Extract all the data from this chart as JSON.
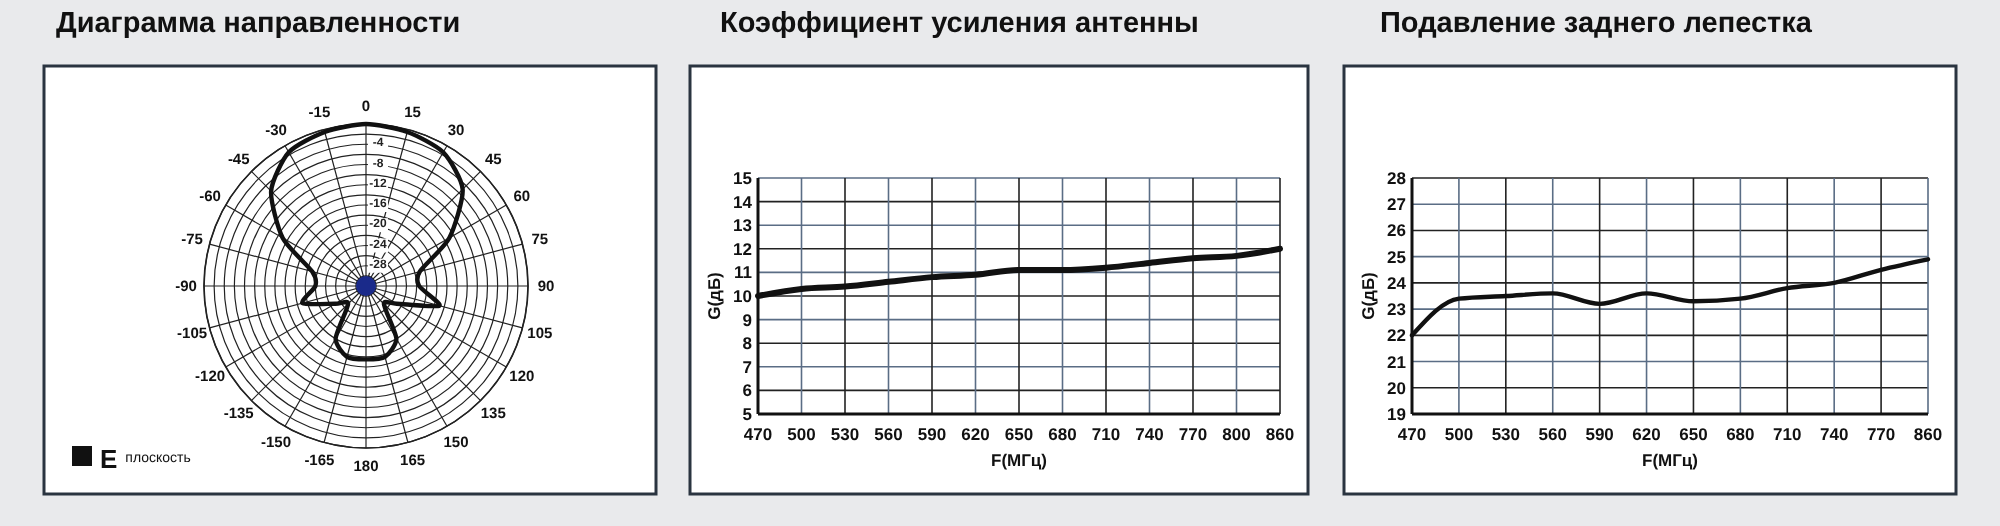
{
  "chart_data": [
    {
      "type": "radar",
      "title": "Диаграмма направленности",
      "categories": [
        "0",
        "15",
        "30",
        "45",
        "60",
        "75",
        "90",
        "105",
        "120",
        "135",
        "150",
        "165",
        "180",
        "-165",
        "-150",
        "-135",
        "-120",
        "-105",
        "-90",
        "-75",
        "-60",
        "-45",
        "-30",
        "-15"
      ],
      "series": [
        {
          "name": "E плоскость",
          "color": "#111111",
          "values": [
            0,
            -0.5,
            -1.5,
            -5,
            -13,
            -21,
            -21.5,
            -17,
            -25,
            -27,
            -20,
            -17.5,
            -17.5,
            -17.5,
            -20,
            -27,
            -25,
            -19,
            -22,
            -21,
            -13,
            -5.5,
            -1.5,
            -0.5
          ]
        }
      ],
      "ylim": [
        -32,
        0
      ],
      "yticks": [
        -28,
        -24,
        -20,
        -16,
        -12,
        -8,
        -4
      ],
      "grid": true,
      "legend": "bottom left"
    },
    {
      "type": "line",
      "title": "Коэффициент усиления антенны",
      "xlabel": "F(МГц)",
      "ylabel": "G(дБ)",
      "categories": [
        "470",
        "500",
        "530",
        "560",
        "590",
        "620",
        "650",
        "680",
        "710",
        "740",
        "770",
        "800",
        "860"
      ],
      "series": [
        {
          "color": "#111111",
          "values": [
            10.0,
            10.3,
            10.4,
            10.6,
            10.8,
            10.9,
            11.1,
            11.1,
            11.2,
            11.4,
            11.6,
            11.7,
            12.0
          ]
        }
      ],
      "ylim": [
        5,
        15
      ],
      "yticks": [
        5,
        6,
        7,
        8,
        9,
        10,
        11,
        12,
        13,
        14,
        15
      ],
      "grid": true
    },
    {
      "type": "line",
      "title": "Подавление заднего лепестка",
      "xlabel": "F(МГц)",
      "ylabel": "G(дБ)",
      "categories": [
        "470",
        "500",
        "530",
        "560",
        "590",
        "620",
        "650",
        "680",
        "710",
        "740",
        "770",
        "860"
      ],
      "series": [
        {
          "color": "#111111",
          "values": [
            22.0,
            23.4,
            23.5,
            23.6,
            23.2,
            23.6,
            23.3,
            23.4,
            23.8,
            24.0,
            24.5,
            24.9
          ]
        }
      ],
      "ylim": [
        19,
        28
      ],
      "yticks": [
        19,
        20,
        21,
        22,
        23,
        24,
        25,
        26,
        27,
        28
      ],
      "grid": true
    }
  ]
}
